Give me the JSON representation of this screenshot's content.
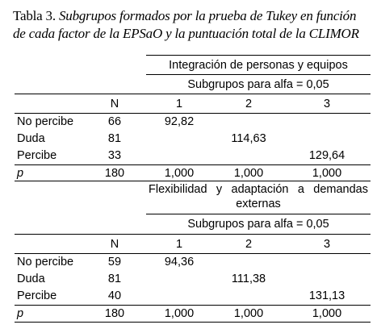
{
  "caption": {
    "lead": "Tabla 3.",
    "line1": "Subgrupos formados por la prueba de Tukey en función",
    "line2": "de cada factor de la EPSaO y la puntuación total de la CLIMOR"
  },
  "table1": {
    "heading": "Integración de personas y equipos",
    "subheading": "Subgrupos para alfa = 0,05",
    "columns": [
      "N",
      "1",
      "2",
      "3"
    ],
    "rows": [
      {
        "label": "No percibe",
        "n": "66",
        "c1": "92,82",
        "c2": "",
        "c3": ""
      },
      {
        "label": "Duda",
        "n": "81",
        "c1": "",
        "c2": "114,63",
        "c3": ""
      },
      {
        "label": "Percibe",
        "n": "33",
        "c1": "",
        "c2": "",
        "c3": "129,64"
      }
    ],
    "p_row": {
      "label": "p",
      "n": "180",
      "c1": "1,000",
      "c2": "1,000",
      "c3": "1,000"
    }
  },
  "table2": {
    "heading_line1": "Flexibilidad  y  adaptación  a  demandas",
    "heading_line2": "externas",
    "subheading": "Subgrupos para alfa = 0,05",
    "columns": [
      "N",
      "1",
      "2",
      "3"
    ],
    "rows": [
      {
        "label": "No percibe",
        "n": "59",
        "c1": "94,36",
        "c2": "",
        "c3": ""
      },
      {
        "label": "Duda",
        "n": "81",
        "c1": "",
        "c2": "111,38",
        "c3": ""
      },
      {
        "label": "Percibe",
        "n": "40",
        "c1": "",
        "c2": "",
        "c3": "131,13"
      }
    ],
    "p_row": {
      "label": "p",
      "n": "180",
      "c1": "1,000",
      "c2": "1,000",
      "c3": "1,000"
    }
  }
}
